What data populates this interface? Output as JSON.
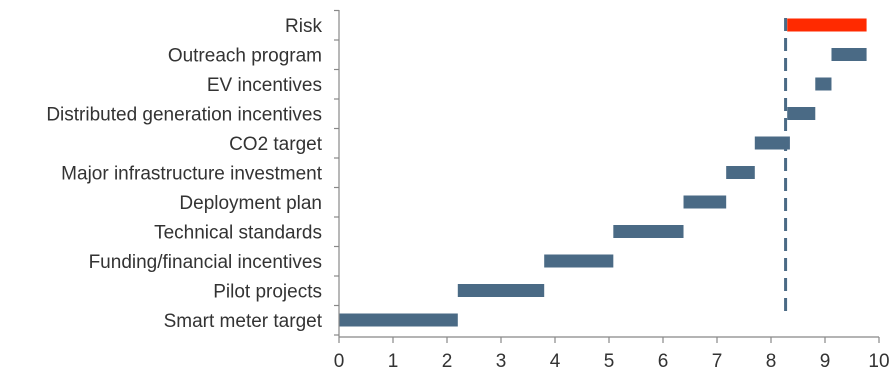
{
  "chart_data": {
    "type": "bar",
    "orientation": "horizontal",
    "variant": "floating-range",
    "categories": [
      "Risk",
      "Outreach program",
      "EV incentives",
      "Distributed generation incentives",
      "CO2 target",
      "Major infrastructure investment",
      "Deployment plan",
      "Technical standards",
      "Funding/financial incentives",
      "Pilot projects",
      "Smart meter target"
    ],
    "bars": [
      {
        "category": "Risk",
        "start": 8.3,
        "end": 9.77,
        "color": "#ff2a00"
      },
      {
        "category": "Outreach program",
        "start": 9.12,
        "end": 9.77,
        "color": "#4a6a85"
      },
      {
        "category": "EV incentives",
        "start": 8.82,
        "end": 9.12,
        "color": "#4a6a85"
      },
      {
        "category": "Distributed generation incentives",
        "start": 8.3,
        "end": 8.82,
        "color": "#4a6a85"
      },
      {
        "category": "CO2 target",
        "start": 7.7,
        "end": 8.35,
        "color": "#4a6a85"
      },
      {
        "category": "Major infrastructure investment",
        "start": 7.17,
        "end": 7.7,
        "color": "#4a6a85"
      },
      {
        "category": "Deployment plan",
        "start": 6.38,
        "end": 7.17,
        "color": "#4a6a85"
      },
      {
        "category": "Technical standards",
        "start": 5.08,
        "end": 6.38,
        "color": "#4a6a85"
      },
      {
        "category": "Funding/financial incentives",
        "start": 3.8,
        "end": 5.08,
        "color": "#4a6a85"
      },
      {
        "category": "Pilot projects",
        "start": 2.2,
        "end": 3.8,
        "color": "#4a6a85"
      },
      {
        "category": "Smart meter target",
        "start": 0,
        "end": 2.2,
        "color": "#4a6a85"
      }
    ],
    "reference_line": {
      "x": 8.27,
      "style": "dashed",
      "color": "#4a6a85"
    },
    "xlim": [
      0,
      10
    ],
    "xticks": [
      "0",
      "1",
      "2",
      "3",
      "4",
      "5",
      "6",
      "7",
      "8",
      "9",
      "10"
    ],
    "grid": false,
    "legend": "none",
    "title": "",
    "xlabel": "",
    "ylabel": ""
  }
}
